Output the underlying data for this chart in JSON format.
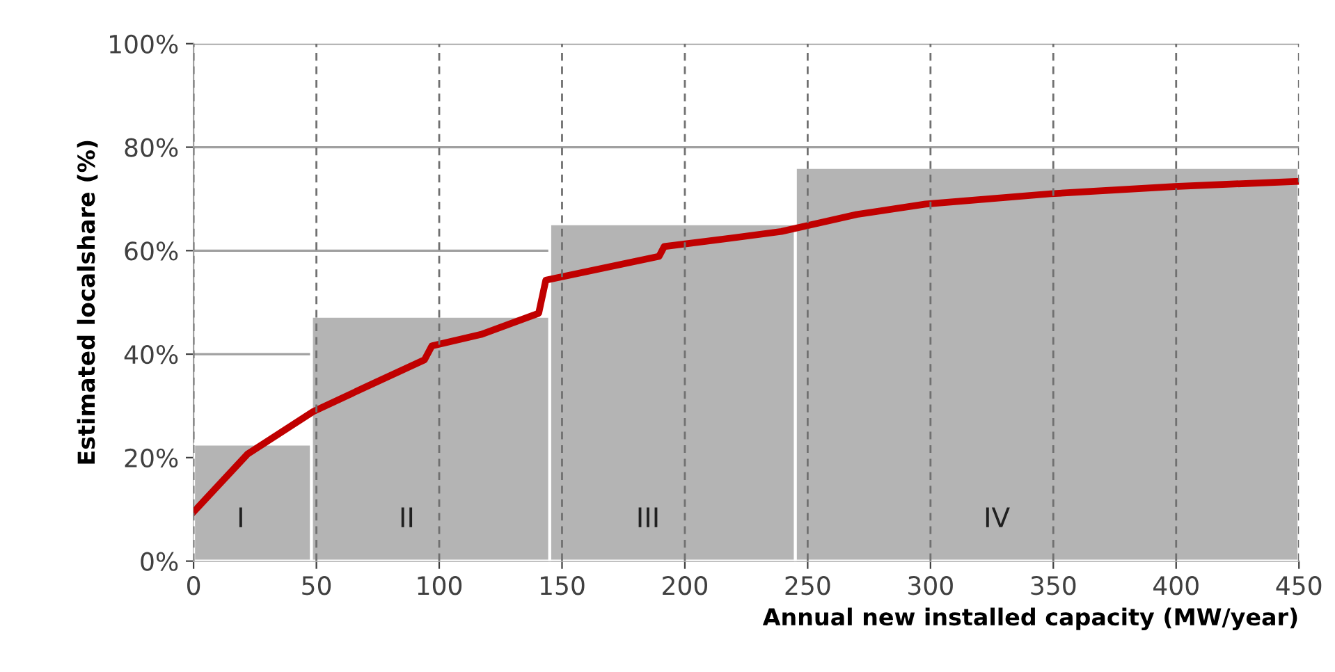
{
  "chart_data": {
    "type": "histogram",
    "xlabel": "Annual new installed capacity (MW/year)",
    "ylabel": "Estimated localshare (%)",
    "series": [
      {
        "bins": [
          0,
          48,
          145,
          245,
          450
        ],
        "values": [
          22.6,
          47.3,
          65.2,
          76.1
        ],
        "color": "#b4b4b4"
      },
      {
        "type": "line",
        "color": "#c00000",
        "x": [
          0,
          22,
          48.7,
          73,
          94,
          97,
          117,
          140.5,
          143.4,
          189.5,
          191.6,
          220,
          239.3,
          270,
          298,
          349,
          399.4,
          450
        ],
        "values": [
          9.5,
          20.7,
          28.9,
          34.3,
          38.9,
          41.6,
          43.8,
          47.9,
          54.3,
          58.9,
          60.8,
          62.5,
          63.7,
          67,
          69.0,
          71.0,
          72.4,
          73.4
        ]
      }
    ],
    "xlim": [
      0,
      450
    ],
    "ylim": [
      0,
      100
    ],
    "xticks": [
      0,
      50,
      100,
      150,
      200,
      250,
      300,
      350,
      400,
      450
    ],
    "yticks": [
      {
        "value": 0,
        "label": "0%"
      },
      {
        "value": 20,
        "label": "20%"
      },
      {
        "value": 40,
        "label": "40%"
      },
      {
        "value": 60,
        "label": "60%"
      },
      {
        "value": 80,
        "label": "80%"
      },
      {
        "value": 100,
        "label": "100%"
      }
    ],
    "grid": true,
    "marker": "none",
    "annotations": [
      "I",
      "II",
      "III",
      "IV"
    ]
  }
}
